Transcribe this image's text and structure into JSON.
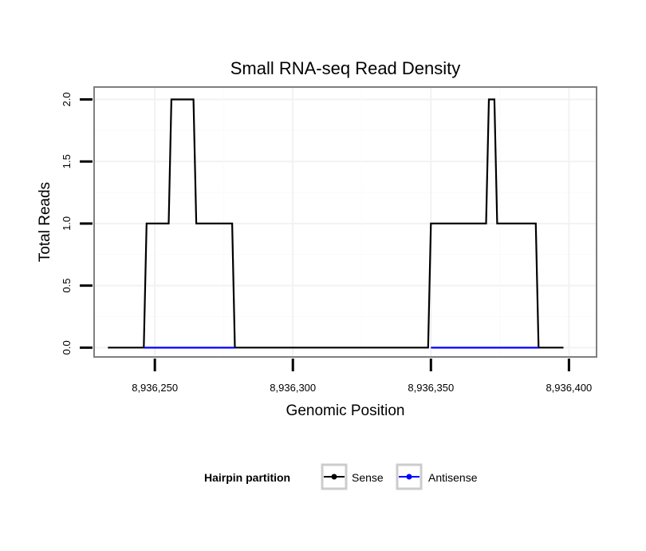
{
  "chart_data": {
    "type": "line",
    "title": "Small RNA-seq Read Density",
    "xlabel": "Genomic Position",
    "ylabel": "Total Reads",
    "xlim": [
      8936228,
      8936410
    ],
    "ylim": [
      -0.075,
      2.1
    ],
    "x_ticks": [
      8936250,
      8936300,
      8936350,
      8936400
    ],
    "x_tick_labels": [
      "8,936,250",
      "8,936,300",
      "8,936,350",
      "8,936,400"
    ],
    "y_ticks": [
      0,
      0.5,
      1,
      1.5,
      2
    ],
    "y_tick_labels": [
      "0.0",
      "0.5",
      "1.0",
      "1.5",
      "2.0"
    ],
    "grid": true,
    "legend": {
      "position": "bottom",
      "title": "Hairpin partition",
      "entries": [
        "Sense",
        "Antisense"
      ]
    },
    "series": [
      {
        "name": "Sense",
        "color": "#000000",
        "x": [
          8936233,
          8936246,
          8936247,
          8936255,
          8936256,
          8936264,
          8936265,
          8936278,
          8936279,
          8936349,
          8936350,
          8936370,
          8936371,
          8936373,
          8936374,
          8936388,
          8936389,
          8936398
        ],
        "y": [
          0,
          0,
          1,
          1,
          2,
          2,
          1,
          1,
          0,
          0,
          1,
          1,
          2,
          2,
          1,
          1,
          0,
          0
        ]
      },
      {
        "name": "Antisense",
        "color": "#0000ff",
        "x": [
          8936246,
          8936279,
          8936350,
          8936389
        ],
        "y": [
          0,
          0,
          0,
          0
        ],
        "segments": [
          [
            0,
            1
          ],
          [
            2,
            3
          ]
        ]
      }
    ]
  }
}
